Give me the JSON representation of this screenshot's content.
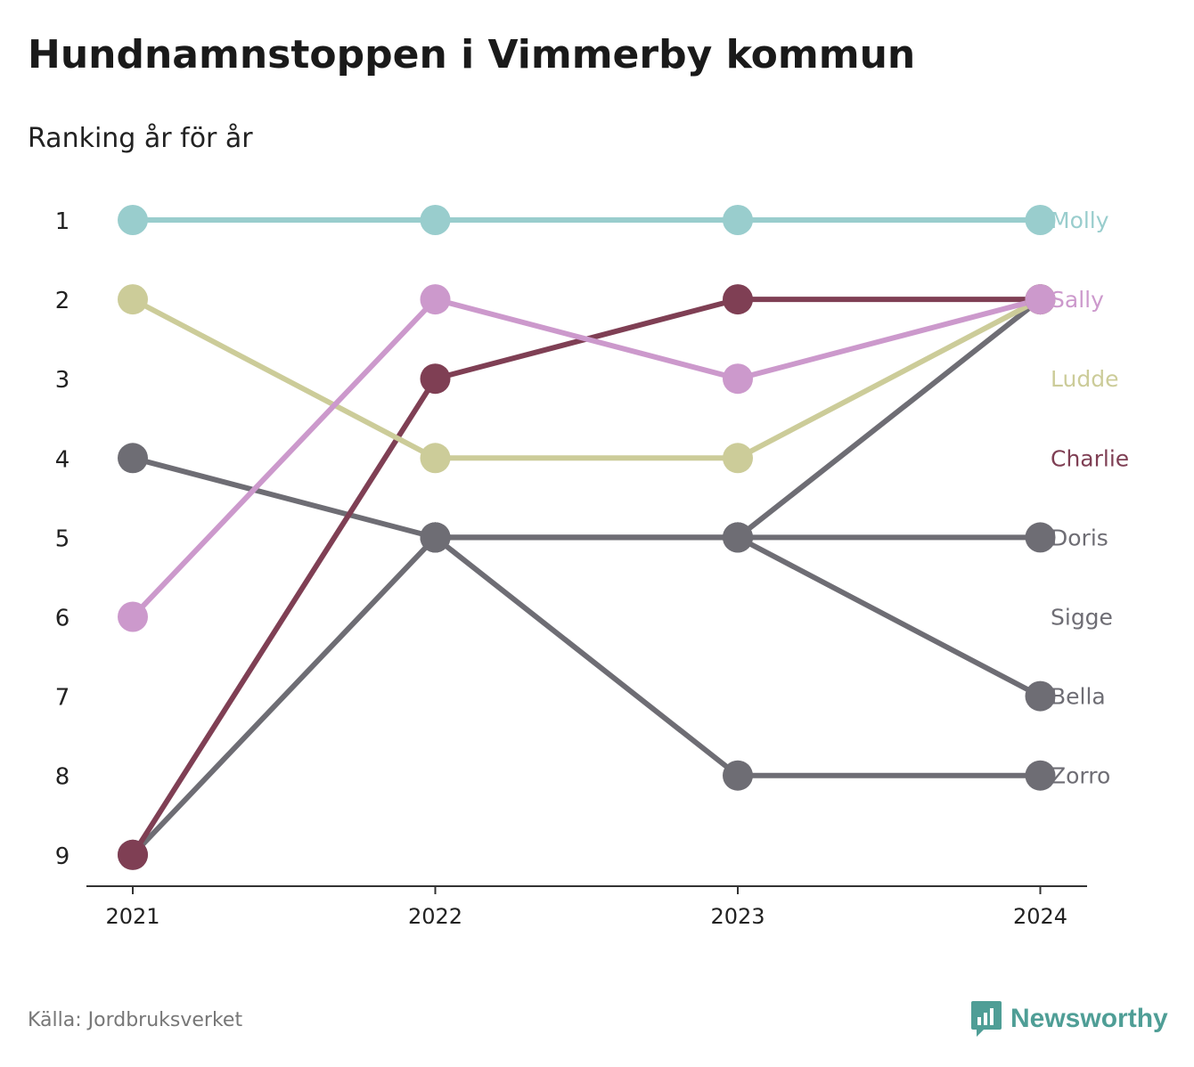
{
  "title": "Hundnamnstoppen i Vimmerby kommun",
  "subtitle": "Ranking år för år",
  "source": "Källa: Jordbruksverket",
  "brand": {
    "name": "Newsworthy",
    "icon": "newsworthy-logo-icon",
    "color": "#4f9e96"
  },
  "chart_data": {
    "type": "line",
    "x": [
      "2021",
      "2022",
      "2023",
      "2024"
    ],
    "y_ticks": [
      1,
      2,
      3,
      4,
      5,
      6,
      7,
      8,
      9
    ],
    "ylim": [
      1,
      9
    ],
    "y_reversed": true,
    "grid": false,
    "series": [
      {
        "name": "Molly",
        "color": "#99cdcd",
        "values": [
          1,
          1,
          1,
          1
        ]
      },
      {
        "name": "Sally",
        "color": "#cc99cc",
        "values": [
          6,
          2,
          3,
          2
        ]
      },
      {
        "name": "Ludde",
        "color": "#cccc99",
        "values": [
          2,
          4,
          4,
          2
        ]
      },
      {
        "name": "Charlie",
        "color": "#7f3f54",
        "values": [
          9,
          3,
          2,
          2
        ]
      },
      {
        "name": "Doris",
        "color": "#6e6d74",
        "values": [
          4,
          5,
          5,
          5
        ]
      },
      {
        "name": "Sigge",
        "color": "#6e6d74",
        "values": [
          9,
          5,
          5,
          2
        ]
      },
      {
        "name": "Bella",
        "color": "#6e6d74",
        "values": [
          null,
          5,
          5,
          7
        ]
      },
      {
        "name": "Zorro",
        "color": "#6e6d74",
        "values": [
          null,
          5,
          8,
          8
        ]
      }
    ],
    "end_labels": [
      {
        "name": "Molly",
        "rank": 1
      },
      {
        "name": "Sally",
        "rank": 2
      },
      {
        "name": "Ludde",
        "rank": 3
      },
      {
        "name": "Charlie",
        "rank": 4
      },
      {
        "name": "Doris",
        "rank": 5
      },
      {
        "name": "Sigge",
        "rank": 6
      },
      {
        "name": "Bella",
        "rank": 7
      },
      {
        "name": "Zorro",
        "rank": 8
      }
    ]
  }
}
